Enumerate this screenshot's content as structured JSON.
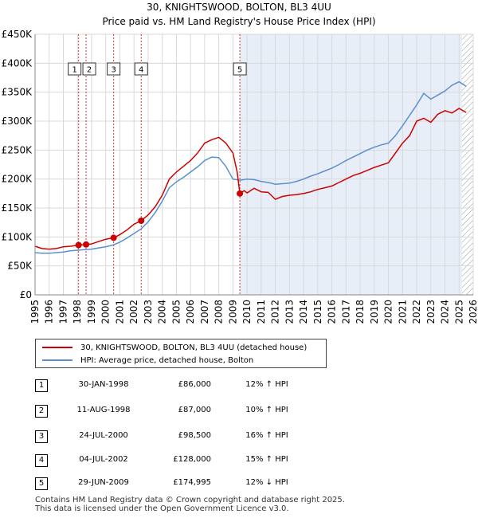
{
  "title": "30, KNIGHTSWOOD, BOLTON, BL3 4UU",
  "subtitle": "Price paid vs. HM Land Registry's House Price Index (HPI)",
  "colors": {
    "property": "#cc0000",
    "hpi": "#5b8fd0",
    "shade": "#e8eef8",
    "grid": "#d8d8d8",
    "marker_line": "#cc0000"
  },
  "chart_data": {
    "type": "line",
    "title": "30, KNIGHTSWOOD, BOLTON, BL3 4UU",
    "subtitle": "Price paid vs. HM Land Registry's House Price Index (HPI)",
    "xlim": [
      1995,
      2026
    ],
    "ylim": [
      0,
      450000
    ],
    "y_ticks": [
      0,
      50000,
      100000,
      150000,
      200000,
      250000,
      300000,
      350000,
      400000,
      450000
    ],
    "y_tick_labels": [
      "£0",
      "£50K",
      "£100K",
      "£150K",
      "£200K",
      "£250K",
      "£300K",
      "£350K",
      "£400K",
      "£450K"
    ],
    "x_ticks": [
      1995,
      1996,
      1997,
      1998,
      1999,
      2000,
      2001,
      2002,
      2003,
      2004,
      2005,
      2006,
      2007,
      2008,
      2009,
      2010,
      2011,
      2012,
      2013,
      2014,
      2015,
      2016,
      2017,
      2018,
      2019,
      2020,
      2021,
      2022,
      2023,
      2024,
      2025,
      2026
    ],
    "x_tick_labels": [
      "1995",
      "1996",
      "1997",
      "1998",
      "1999",
      "2000",
      "2001",
      "2002",
      "2003",
      "2004",
      "2005",
      "2006",
      "2007",
      "2008",
      "2009",
      "2010",
      "2011",
      "2012",
      "2013",
      "2014",
      "2015",
      "2016",
      "2017",
      "2018",
      "2019",
      "2020",
      "2021",
      "2022",
      "2023",
      "2024",
      "2025",
      "2026"
    ],
    "shaded_ranges": [
      [
        2009.49,
        2025.2
      ]
    ],
    "hatched_from": 2025.2,
    "series": [
      {
        "name": "30, KNIGHTSWOOD, BOLTON, BL3 4UU (detached house)",
        "color": "#cc0000",
        "x": [
          1995.0,
          1995.5,
          1996.0,
          1996.5,
          1997.0,
          1997.5,
          1998.08,
          1998.61,
          1999.0,
          1999.5,
          2000.0,
          2000.56,
          2001.0,
          2001.5,
          2002.0,
          2002.51,
          2003.0,
          2003.5,
          2004.0,
          2004.5,
          2005.0,
          2005.5,
          2006.0,
          2006.5,
          2007.0,
          2007.5,
          2008.0,
          2008.5,
          2009.0,
          2009.3,
          2009.49,
          2009.8,
          2010.0,
          2010.5,
          2011.0,
          2011.5,
          2012.0,
          2012.5,
          2013.0,
          2013.5,
          2014.0,
          2014.5,
          2015.0,
          2015.5,
          2016.0,
          2016.5,
          2017.0,
          2017.5,
          2018.0,
          2018.5,
          2019.0,
          2019.5,
          2020.0,
          2020.5,
          2021.0,
          2021.5,
          2022.0,
          2022.5,
          2023.0,
          2023.5,
          2024.0,
          2024.5,
          2025.0,
          2025.5
        ],
        "y": [
          84000,
          80000,
          79000,
          80000,
          83000,
          84000,
          86000,
          87000,
          88000,
          92000,
          96000,
          98500,
          104000,
          112000,
          122000,
          128000,
          138000,
          152000,
          172000,
          200000,
          212000,
          222000,
          232000,
          245000,
          262000,
          268000,
          272000,
          262000,
          245000,
          212000,
          174995,
          180000,
          176000,
          184000,
          178000,
          177000,
          165000,
          170000,
          172000,
          173000,
          175000,
          178000,
          182000,
          185000,
          188000,
          194000,
          200000,
          206000,
          210000,
          215000,
          220000,
          224000,
          228000,
          245000,
          262000,
          275000,
          300000,
          305000,
          298000,
          312000,
          318000,
          314000,
          322000,
          315000
        ]
      },
      {
        "name": "HPI: Average price, detached house, Bolton",
        "color": "#5b8fd0",
        "x": [
          1995.0,
          1995.5,
          1996.0,
          1996.5,
          1997.0,
          1997.5,
          1998.0,
          1998.5,
          1999.0,
          1999.5,
          2000.0,
          2000.5,
          2001.0,
          2001.5,
          2002.0,
          2002.5,
          2003.0,
          2003.5,
          2004.0,
          2004.5,
          2005.0,
          2005.5,
          2006.0,
          2006.5,
          2007.0,
          2007.5,
          2008.0,
          2008.5,
          2009.0,
          2009.5,
          2010.0,
          2010.5,
          2011.0,
          2011.5,
          2012.0,
          2012.5,
          2013.0,
          2013.5,
          2014.0,
          2014.5,
          2015.0,
          2015.5,
          2016.0,
          2016.5,
          2017.0,
          2017.5,
          2018.0,
          2018.5,
          2019.0,
          2019.5,
          2020.0,
          2020.5,
          2021.0,
          2021.5,
          2022.0,
          2022.5,
          2023.0,
          2023.5,
          2024.0,
          2024.5,
          2025.0,
          2025.5
        ],
        "y": [
          73000,
          72000,
          72000,
          73000,
          74000,
          76000,
          77000,
          78000,
          79000,
          81000,
          83000,
          86000,
          91000,
          98000,
          106000,
          114000,
          126000,
          142000,
          162000,
          185000,
          195000,
          203000,
          212000,
          221000,
          232000,
          238000,
          237000,
          222000,
          200000,
          198000,
          200000,
          199000,
          196000,
          194000,
          191000,
          192000,
          193000,
          196000,
          200000,
          205000,
          209000,
          214000,
          219000,
          225000,
          232000,
          238000,
          244000,
          250000,
          255000,
          259000,
          262000,
          275000,
          292000,
          310000,
          328000,
          348000,
          338000,
          345000,
          352000,
          362000,
          368000,
          360000
        ]
      }
    ],
    "sales": [
      {
        "label": "1",
        "x": 1998.08,
        "y": 86000
      },
      {
        "label": "2",
        "x": 1998.61,
        "y": 87000
      },
      {
        "label": "3",
        "x": 2000.56,
        "y": 98500
      },
      {
        "label": "4",
        "x": 2002.51,
        "y": 128000
      },
      {
        "label": "5",
        "x": 2009.49,
        "y": 174995
      }
    ]
  },
  "legend": [
    {
      "label": "30, KNIGHTSWOOD, BOLTON, BL3 4UU (detached house)",
      "color": "#cc0000"
    },
    {
      "label": "HPI: Average price, detached house, Bolton",
      "color": "#5b8fd0"
    }
  ],
  "table": [
    {
      "num": "1",
      "date": "30-JAN-1998",
      "price": "£86,000",
      "hpi": "12% ↑ HPI"
    },
    {
      "num": "2",
      "date": "11-AUG-1998",
      "price": "£87,000",
      "hpi": "10% ↑ HPI"
    },
    {
      "num": "3",
      "date": "24-JUL-2000",
      "price": "£98,500",
      "hpi": "16% ↑ HPI"
    },
    {
      "num": "4",
      "date": "04-JUL-2002",
      "price": "£128,000",
      "hpi": "15% ↑ HPI"
    },
    {
      "num": "5",
      "date": "29-JUN-2009",
      "price": "£174,995",
      "hpi": "12% ↓ HPI"
    }
  ],
  "footer": {
    "line1": "Contains HM Land Registry data © Crown copyright and database right 2025.",
    "line2": "This data is licensed under the Open Government Licence v3.0."
  }
}
